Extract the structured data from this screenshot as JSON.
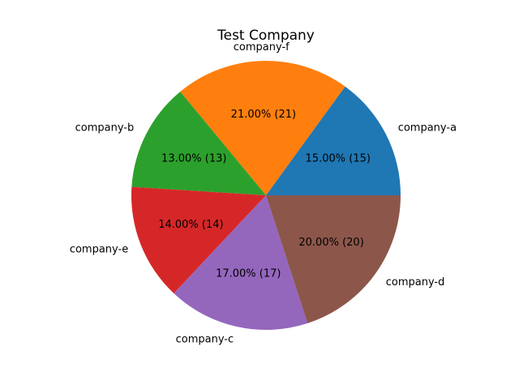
{
  "chart_data": {
    "type": "pie",
    "title": "Test Company",
    "slices": [
      {
        "label": "company-a",
        "value": 15,
        "pct_label": "15.00%  (15)",
        "color": "#1f77b4"
      },
      {
        "label": "company-f",
        "value": 21,
        "pct_label": "21.00%  (21)",
        "color": "#ff7f0e"
      },
      {
        "label": "company-b",
        "value": 13,
        "pct_label": "13.00%  (13)",
        "color": "#2ca02c"
      },
      {
        "label": "company-e",
        "value": 14,
        "pct_label": "14.00%  (14)",
        "color": "#d62728"
      },
      {
        "label": "company-c",
        "value": 17,
        "pct_label": "17.00%  (17)",
        "color": "#9467bd"
      },
      {
        "label": "company-d",
        "value": 20,
        "pct_label": "20.00%  (20)",
        "color": "#8c564b"
      }
    ],
    "start_angle_deg": 0,
    "direction": "counterclockwise",
    "legend": "none"
  }
}
